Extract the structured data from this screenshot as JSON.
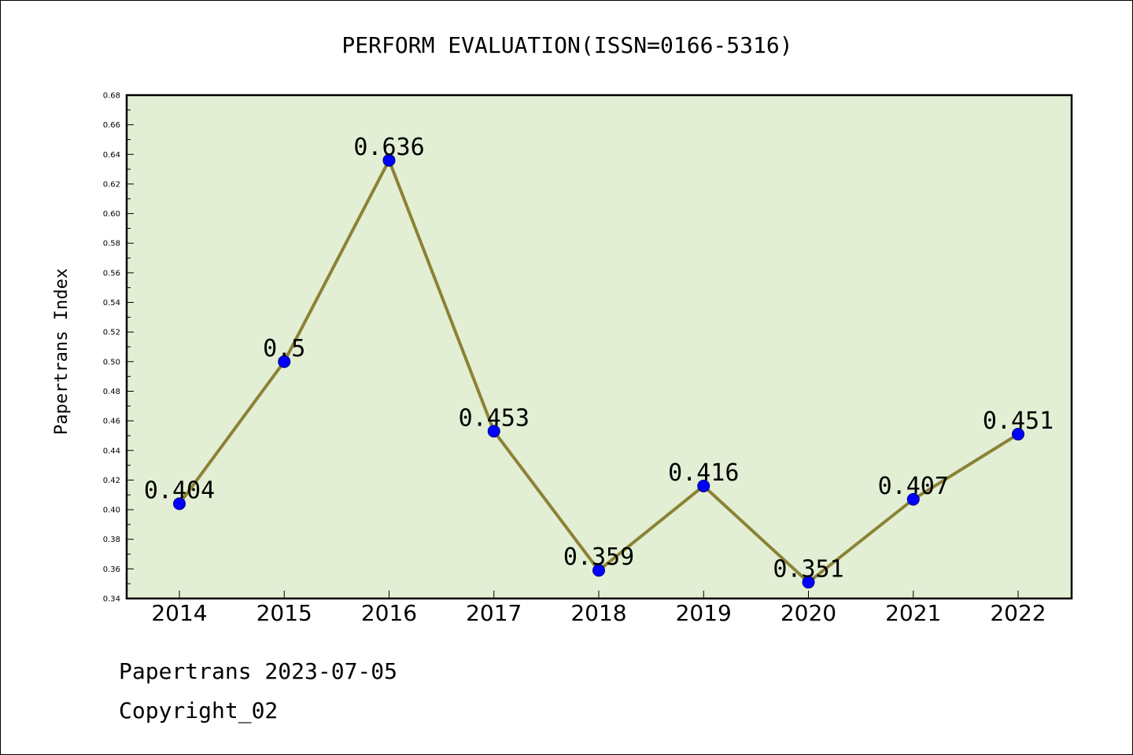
{
  "chart_data": {
    "type": "line",
    "title": "PERFORM EVALUATION(ISSN=0166-5316)",
    "xlabel": "",
    "ylabel": "Papertrans Index",
    "categories": [
      "2014",
      "2015",
      "2016",
      "2017",
      "2018",
      "2019",
      "2020",
      "2021",
      "2022"
    ],
    "series": [
      {
        "values": [
          0.404,
          0.5,
          0.636,
          0.453,
          0.359,
          0.416,
          0.351,
          0.407,
          0.451
        ],
        "data_labels": [
          "0.404",
          "0.5",
          "0.636",
          "0.453",
          "0.359",
          "0.416",
          "0.351",
          "0.407",
          "0.451"
        ]
      }
    ],
    "ylim": [
      0.34,
      0.68
    ],
    "yticks": [
      "0.34",
      "0.36",
      "0.38",
      "0.40",
      "0.42",
      "0.44",
      "0.46",
      "0.48",
      "0.50",
      "0.52",
      "0.54",
      "0.56",
      "0.58",
      "0.60",
      "0.62",
      "0.64",
      "0.66",
      "0.68"
    ],
    "grid": false,
    "colors": {
      "plot_background": "#e2efd4",
      "line": "#8b8236",
      "marker": "#0000ff",
      "axis": "#000000"
    }
  },
  "footer": {
    "date_line": "Papertrans 2023-07-05",
    "copyright_line": "Copyright_02"
  }
}
